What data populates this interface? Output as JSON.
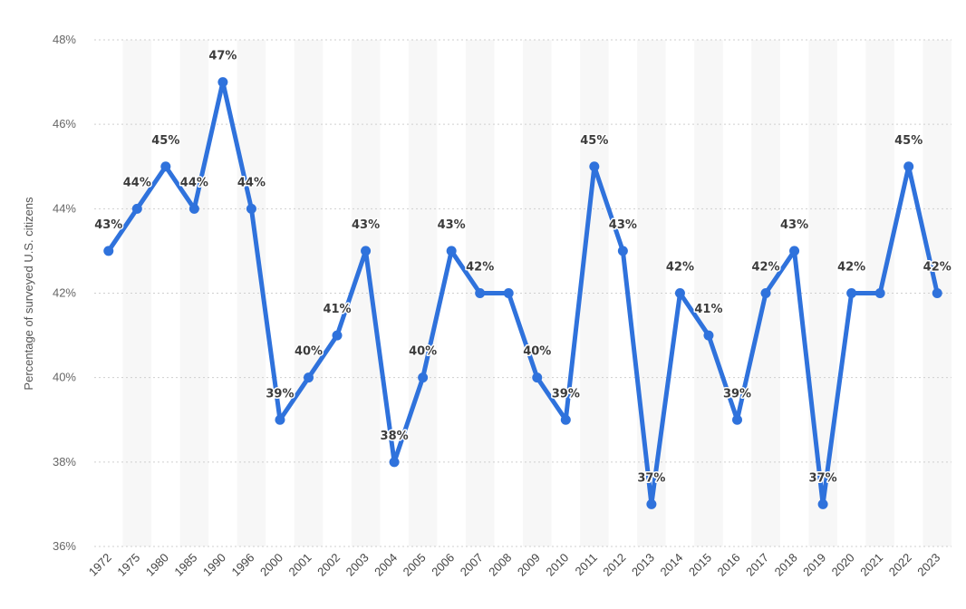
{
  "chart_data": {
    "type": "line",
    "ylabel": "Percentage of surveyed U.S. citizens",
    "xlabel": "",
    "ylim": [
      36,
      48
    ],
    "yticks": [
      "36%",
      "38%",
      "40%",
      "42%",
      "44%",
      "46%",
      "48%"
    ],
    "grid": true,
    "categories": [
      "1972",
      "1975",
      "1980",
      "1985",
      "1990",
      "1996",
      "2000",
      "2001",
      "2002",
      "2003",
      "2004",
      "2005",
      "2006",
      "2007",
      "2008",
      "2009",
      "2010",
      "2011",
      "2012",
      "2013",
      "2014",
      "2015",
      "2016",
      "2017",
      "2018",
      "2019",
      "2020",
      "2021",
      "2022",
      "2023"
    ],
    "series": [
      {
        "color": "#2f72dc",
        "values": [
          43,
          44,
          45,
          44,
          47,
          44,
          39,
          40,
          41,
          43,
          38,
          40,
          43,
          42,
          42,
          40,
          39,
          45,
          43,
          37,
          42,
          41,
          39,
          42,
          43,
          37,
          42,
          42,
          45,
          42
        ],
        "labels": [
          "43%",
          "44%",
          "45%",
          "44%",
          "47%",
          "44%",
          "39%",
          "40%",
          "41%",
          "43%",
          "38%",
          "40%",
          "43%",
          "42%",
          "",
          "40%",
          "39%",
          "45%",
          "43%",
          "37%",
          "42%",
          "41%",
          "39%",
          "42%",
          "43%",
          "37%",
          "42%",
          "",
          "45%",
          "42%"
        ]
      }
    ]
  }
}
